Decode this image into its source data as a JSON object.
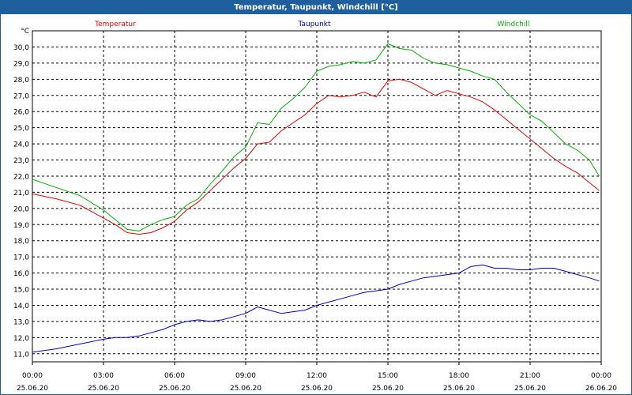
{
  "window": {
    "title": "Temperatur, Taupunkt, Windchill [°C]"
  },
  "chart_data": {
    "type": "line",
    "title": "Temperatur, Taupunkt, Windchill [°C]",
    "yunit": "°C",
    "ylim": [
      10.5,
      31.0
    ],
    "ytick_labels": [
      "11,0",
      "12,0",
      "13,0",
      "14,0",
      "15,0",
      "16,0",
      "17,0",
      "18,0",
      "19,0",
      "20,0",
      "21,0",
      "22,0",
      "23,0",
      "24,0",
      "25,0",
      "26,0",
      "27,0",
      "28,0",
      "29,0",
      "30,0"
    ],
    "xlim": [
      "2020-06-25 00:00",
      "2020-06-26 00:00"
    ],
    "xtick_times": [
      "00:00",
      "03:00",
      "06:00",
      "09:00",
      "12:00",
      "15:00",
      "18:00",
      "21:00",
      "00:00"
    ],
    "xtick_dates": [
      "25.06.20",
      "25.06.20",
      "25.06.20",
      "25.06.20",
      "25.06.20",
      "25.06.20",
      "25.06.20",
      "25.06.20",
      "26.06.20"
    ],
    "grid": true,
    "legend_placement": "top",
    "series": [
      {
        "name": "Temperatur",
        "color": "#e00000",
        "x": [
          "2020-06-25 00:00",
          "2020-06-25 01:00",
          "2020-06-25 02:00",
          "2020-06-25 03:00",
          "2020-06-25 03:30",
          "2020-06-25 04:00",
          "2020-06-25 04:30",
          "2020-06-25 05:00",
          "2020-06-25 05:30",
          "2020-06-25 06:00",
          "2020-06-25 06:30",
          "2020-06-25 07:00",
          "2020-06-25 07:30",
          "2020-06-25 08:00",
          "2020-06-25 08:30",
          "2020-06-25 09:00",
          "2020-06-25 09:30",
          "2020-06-25 10:00",
          "2020-06-25 10:30",
          "2020-06-25 11:00",
          "2020-06-25 11:30",
          "2020-06-25 12:00",
          "2020-06-25 12:30",
          "2020-06-25 13:00",
          "2020-06-25 13:30",
          "2020-06-25 14:00",
          "2020-06-25 14:30",
          "2020-06-25 15:00",
          "2020-06-25 15:30",
          "2020-06-25 16:00",
          "2020-06-25 16:30",
          "2020-06-25 17:00",
          "2020-06-25 17:30",
          "2020-06-25 18:00",
          "2020-06-25 18:30",
          "2020-06-25 19:00",
          "2020-06-25 19:30",
          "2020-06-25 20:00",
          "2020-06-25 20:30",
          "2020-06-25 21:00",
          "2020-06-25 21:30",
          "2020-06-25 22:00",
          "2020-06-25 22:30",
          "2020-06-25 23:00",
          "2020-06-25 23:30",
          "2020-06-25 23:55"
        ],
        "y": [
          20.9,
          20.6,
          20.2,
          19.4,
          19.0,
          18.5,
          18.4,
          18.5,
          18.8,
          19.2,
          19.9,
          20.4,
          21.1,
          21.8,
          22.5,
          23.1,
          24.0,
          24.1,
          24.8,
          25.3,
          25.8,
          26.5,
          27.0,
          26.9,
          27.0,
          27.2,
          26.9,
          27.9,
          28.0,
          27.8,
          27.4,
          27.0,
          27.3,
          27.1,
          26.9,
          26.6,
          26.1,
          25.5,
          24.9,
          24.3,
          23.7,
          23.1,
          22.6,
          22.2,
          21.6,
          21.1
        ]
      },
      {
        "name": "Taupunkt",
        "color": "#0000c0",
        "x": [
          "2020-06-25 00:00",
          "2020-06-25 01:00",
          "2020-06-25 02:00",
          "2020-06-25 03:00",
          "2020-06-25 03:30",
          "2020-06-25 04:00",
          "2020-06-25 04:30",
          "2020-06-25 05:00",
          "2020-06-25 05:30",
          "2020-06-25 06:00",
          "2020-06-25 06:30",
          "2020-06-25 07:00",
          "2020-06-25 07:30",
          "2020-06-25 08:00",
          "2020-06-25 08:30",
          "2020-06-25 09:00",
          "2020-06-25 09:30",
          "2020-06-25 10:00",
          "2020-06-25 10:30",
          "2020-06-25 11:00",
          "2020-06-25 11:30",
          "2020-06-25 12:00",
          "2020-06-25 12:30",
          "2020-06-25 13:00",
          "2020-06-25 13:30",
          "2020-06-25 14:00",
          "2020-06-25 14:30",
          "2020-06-25 15:00",
          "2020-06-25 15:30",
          "2020-06-25 16:00",
          "2020-06-25 16:30",
          "2020-06-25 17:00",
          "2020-06-25 17:30",
          "2020-06-25 18:00",
          "2020-06-25 18:30",
          "2020-06-25 19:00",
          "2020-06-25 19:30",
          "2020-06-25 20:00",
          "2020-06-25 20:30",
          "2020-06-25 21:00",
          "2020-06-25 21:30",
          "2020-06-25 22:00",
          "2020-06-25 22:30",
          "2020-06-25 23:00",
          "2020-06-25 23:30",
          "2020-06-25 23:55"
        ],
        "y": [
          11.1,
          11.3,
          11.6,
          11.9,
          12.0,
          12.0,
          12.1,
          12.3,
          12.5,
          12.8,
          13.0,
          13.1,
          13.0,
          13.1,
          13.3,
          13.5,
          13.9,
          13.7,
          13.5,
          13.6,
          13.7,
          14.0,
          14.2,
          14.4,
          14.6,
          14.8,
          14.9,
          15.0,
          15.3,
          15.5,
          15.7,
          15.8,
          15.9,
          16.0,
          16.4,
          16.5,
          16.3,
          16.3,
          16.2,
          16.2,
          16.3,
          16.3,
          16.1,
          15.9,
          15.7,
          15.5
        ]
      },
      {
        "name": "Windchill",
        "color": "#00b000",
        "x": [
          "2020-06-25 00:00",
          "2020-06-25 01:00",
          "2020-06-25 02:00",
          "2020-06-25 03:00",
          "2020-06-25 03:30",
          "2020-06-25 04:00",
          "2020-06-25 04:30",
          "2020-06-25 05:00",
          "2020-06-25 05:30",
          "2020-06-25 06:00",
          "2020-06-25 06:30",
          "2020-06-25 07:00",
          "2020-06-25 07:30",
          "2020-06-25 08:00",
          "2020-06-25 08:30",
          "2020-06-25 09:00",
          "2020-06-25 09:30",
          "2020-06-25 10:00",
          "2020-06-25 10:30",
          "2020-06-25 11:00",
          "2020-06-25 11:30",
          "2020-06-25 12:00",
          "2020-06-25 12:30",
          "2020-06-25 13:00",
          "2020-06-25 13:30",
          "2020-06-25 14:00",
          "2020-06-25 14:30",
          "2020-06-25 15:00",
          "2020-06-25 15:30",
          "2020-06-25 16:00",
          "2020-06-25 16:30",
          "2020-06-25 17:00",
          "2020-06-25 17:30",
          "2020-06-25 18:00",
          "2020-06-25 18:30",
          "2020-06-25 19:00",
          "2020-06-25 19:30",
          "2020-06-25 20:00",
          "2020-06-25 20:30",
          "2020-06-25 21:00",
          "2020-06-25 21:30",
          "2020-06-25 22:00",
          "2020-06-25 22:30",
          "2020-06-25 23:00",
          "2020-06-25 23:30",
          "2020-06-25 23:55"
        ],
        "y": [
          21.8,
          21.3,
          20.8,
          19.9,
          19.3,
          18.7,
          18.6,
          19.0,
          19.3,
          19.5,
          20.2,
          20.6,
          21.5,
          22.3,
          23.2,
          23.8,
          25.3,
          25.2,
          26.2,
          26.8,
          27.5,
          28.5,
          28.8,
          28.9,
          29.1,
          29.0,
          29.2,
          30.2,
          29.9,
          29.8,
          29.3,
          29.0,
          28.9,
          28.7,
          28.5,
          28.2,
          28.0,
          27.2,
          26.5,
          25.8,
          25.4,
          24.7,
          24.0,
          23.6,
          23.0,
          22.0
        ]
      }
    ]
  }
}
